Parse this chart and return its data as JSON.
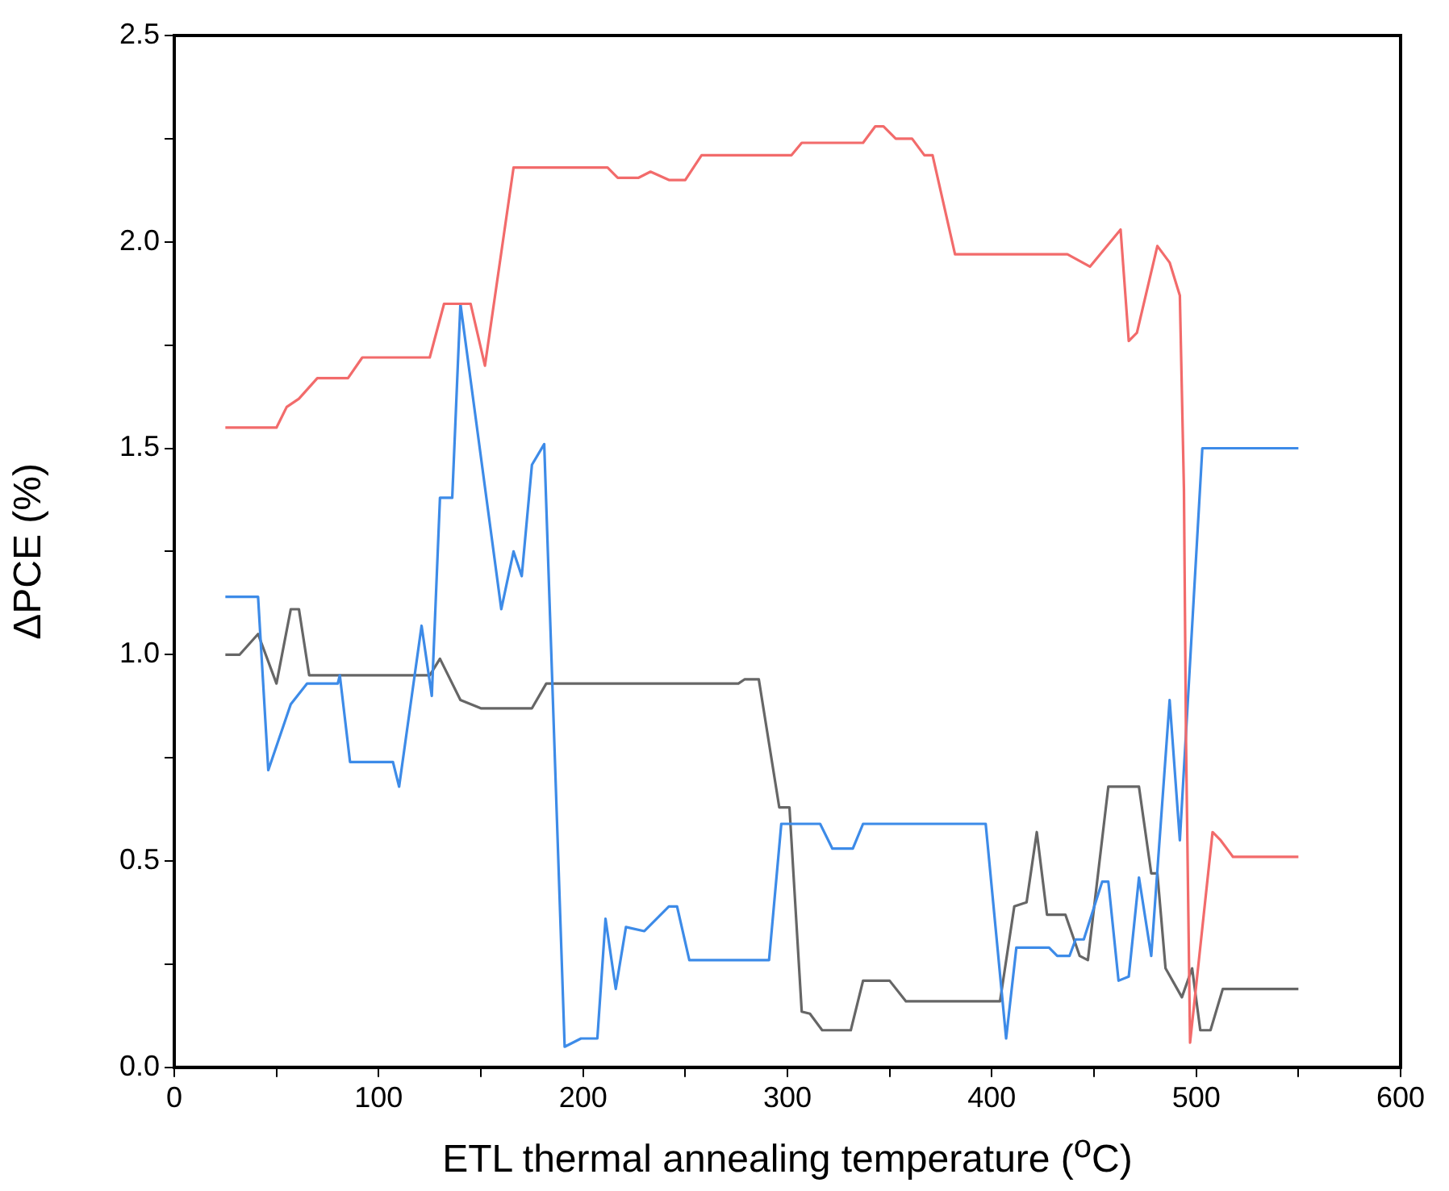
{
  "chart_data": {
    "type": "line",
    "xlabel": "ETL thermal annealing temperature ($^{o}$C)",
    "ylabel": "ΔPCE (%)",
    "xlim": [
      0,
      600
    ],
    "xticks": [
      0,
      {
        "value": 50,
        "label": null
      },
      100,
      {
        "value": 150,
        "label": null
      },
      200,
      {
        "value": 250,
        "label": null
      },
      300,
      {
        "value": 350,
        "label": null
      },
      400,
      {
        "value": 450,
        "label": null
      },
      500,
      {
        "value": 550,
        "label": null
      },
      600
    ],
    "ylim": [
      0,
      2.5
    ],
    "yticks": [
      {
        "value": 0,
        "label": "0.0"
      },
      {
        "value": 0.25,
        "label": null
      },
      0.5,
      {
        "value": 0.75,
        "label": null
      },
      {
        "value": 1,
        "label": "1.0"
      },
      {
        "value": 1.25,
        "label": null
      },
      1.5,
      {
        "value": 1.75,
        "label": null
      },
      {
        "value": 2,
        "label": "2.0"
      },
      {
        "value": 2.25,
        "label": null
      },
      2.5
    ],
    "grid": false,
    "legend": false,
    "marker": "none",
    "line_style": "solid",
    "series": [
      {
        "color": "#f26b6b",
        "x": [
          25,
          50,
          55,
          61,
          70,
          85,
          92,
          125,
          132,
          138,
          145,
          152,
          166,
          212,
          217,
          227,
          233,
          242,
          250,
          258,
          302,
          307,
          337,
          343,
          347,
          353,
          361,
          367,
          371,
          382,
          437,
          448,
          463,
          467,
          471,
          481,
          487,
          492,
          494,
          495,
          497,
          508,
          512,
          518,
          550
        ],
        "values": [
          1.55,
          1.55,
          1.6,
          1.62,
          1.67,
          1.67,
          1.72,
          1.72,
          1.85,
          1.85,
          1.85,
          1.7,
          2.18,
          2.18,
          2.155,
          2.155,
          2.17,
          2.15,
          2.15,
          2.21,
          2.21,
          2.24,
          2.24,
          2.28,
          2.28,
          2.25,
          2.25,
          2.21,
          2.21,
          1.97,
          1.97,
          1.94,
          2.03,
          1.76,
          1.78,
          1.99,
          1.95,
          1.87,
          1.4,
          0.8,
          0.06,
          0.57,
          0.55,
          0.51,
          0.51
        ]
      },
      {
        "color": "#3d8be8",
        "x": [
          25,
          41,
          46,
          57,
          65,
          80,
          81,
          86,
          107,
          110,
          121,
          126,
          130,
          136,
          140,
          160,
          166,
          170,
          175,
          181,
          191,
          199,
          207,
          211,
          216,
          221,
          230,
          242,
          246,
          252,
          291,
          297,
          316,
          322,
          332,
          337,
          397,
          407,
          412,
          428,
          432,
          438,
          441,
          445,
          454,
          457,
          462,
          467,
          472,
          478,
          487,
          492,
          503,
          550
        ],
        "values": [
          1.14,
          1.14,
          0.72,
          0.88,
          0.93,
          0.93,
          0.95,
          0.74,
          0.74,
          0.68,
          1.07,
          0.9,
          1.38,
          1.38,
          1.85,
          1.11,
          1.25,
          1.19,
          1.46,
          1.51,
          0.05,
          0.07,
          0.07,
          0.36,
          0.19,
          0.34,
          0.33,
          0.39,
          0.39,
          0.26,
          0.26,
          0.59,
          0.59,
          0.53,
          0.53,
          0.59,
          0.59,
          0.07,
          0.29,
          0.29,
          0.27,
          0.27,
          0.31,
          0.31,
          0.45,
          0.45,
          0.21,
          0.22,
          0.46,
          0.27,
          0.89,
          0.55,
          1.5,
          1.5
        ]
      },
      {
        "color": "#666666",
        "x": [
          25,
          32,
          41,
          50,
          57,
          61,
          66,
          125,
          130,
          140,
          150,
          175,
          182,
          276,
          279,
          286,
          296,
          301,
          307,
          311,
          317,
          331,
          337,
          350,
          358,
          404,
          411,
          417,
          422,
          427,
          436,
          443,
          447,
          457,
          472,
          478,
          481,
          485,
          493,
          498,
          502,
          507,
          513,
          550
        ],
        "values": [
          1.0,
          1.0,
          1.05,
          0.93,
          1.11,
          1.11,
          0.95,
          0.95,
          0.99,
          0.89,
          0.87,
          0.87,
          0.93,
          0.93,
          0.94,
          0.94,
          0.63,
          0.63,
          0.135,
          0.13,
          0.09,
          0.09,
          0.21,
          0.21,
          0.16,
          0.16,
          0.39,
          0.4,
          0.57,
          0.37,
          0.37,
          0.27,
          0.26,
          0.68,
          0.68,
          0.47,
          0.47,
          0.24,
          0.17,
          0.24,
          0.09,
          0.09,
          0.19,
          0.19
        ]
      }
    ]
  }
}
